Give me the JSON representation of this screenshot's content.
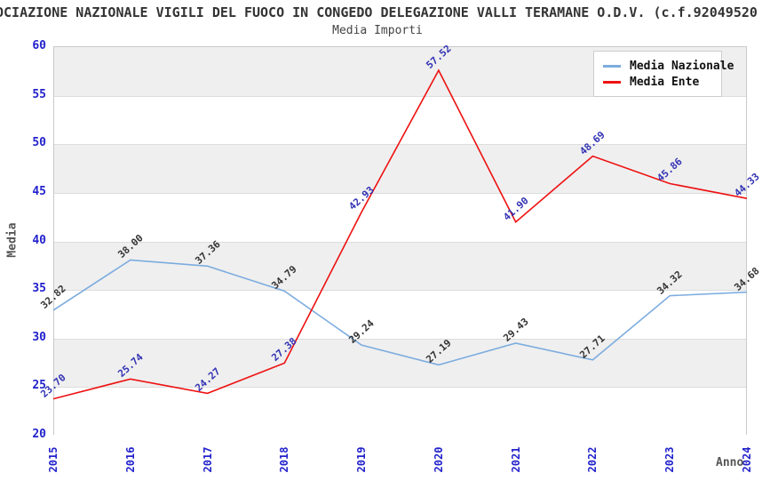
{
  "chart_data": {
    "type": "line",
    "title": "OCIAZIONE NAZIONALE VIGILI DEL FUOCO IN CONGEDO DELEGAZIONE VALLI TERAMANE O.D.V. (c.f.92049520",
    "subtitle": "Media Importi",
    "xlabel": "Anno",
    "ylabel": "Media",
    "ylim": [
      20,
      60
    ],
    "ytick_step": 5,
    "grid": true,
    "legend_position": "top-right",
    "axis_label_color": "#2222cc",
    "band_colors": [
      "#efefef",
      "#ffffff"
    ],
    "categories": [
      "2015",
      "2016",
      "2017",
      "2018",
      "2019",
      "2020",
      "2021",
      "2022",
      "2023",
      "2024"
    ],
    "series": [
      {
        "name": "Media Nazionale",
        "color": "#7cacdf",
        "label_color": "#333333",
        "values": [
          32.82,
          38.0,
          37.36,
          34.79,
          29.24,
          27.19,
          29.43,
          27.71,
          34.32,
          34.68
        ]
      },
      {
        "name": "Media Ente",
        "color": "#ee1111",
        "label_color": "#3232b4",
        "values": [
          23.7,
          25.74,
          24.27,
          27.38,
          42.93,
          57.52,
          41.9,
          48.69,
          45.86,
          44.33
        ]
      }
    ]
  }
}
